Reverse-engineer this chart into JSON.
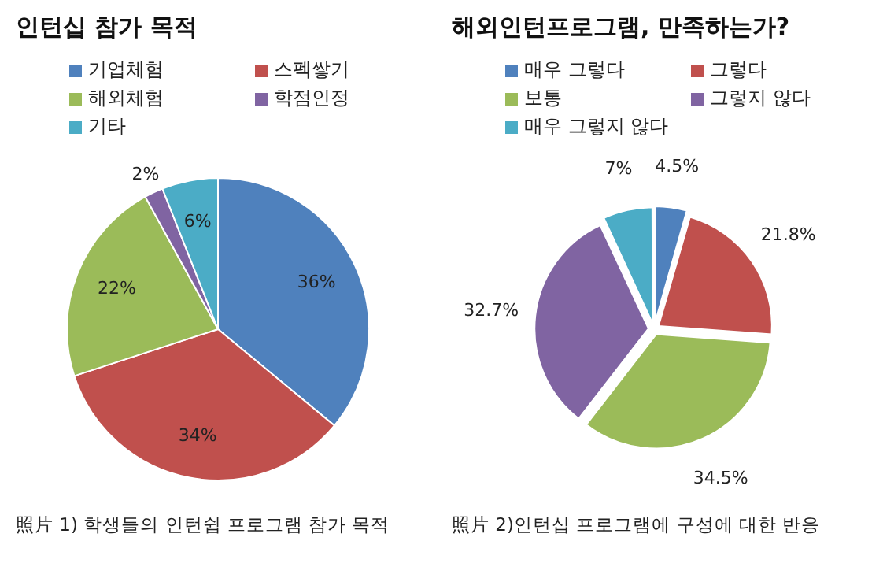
{
  "chart_data": [
    {
      "type": "pie",
      "title": "인턴십 참가 목적",
      "categories": [
        "기업체험",
        "스펙쌓기",
        "해외체험",
        "학점인정",
        "기타"
      ],
      "values": [
        36,
        34,
        22,
        2,
        6
      ],
      "colors": [
        "#4f81bd",
        "#c0504d",
        "#9bbb59",
        "#8064a2",
        "#4bacc6"
      ],
      "value_labels": [
        "36%",
        "34%",
        "22%",
        "2%",
        "6%"
      ],
      "legend": "top",
      "annotations": [
        "照片 1) 학생들의 인턴쉽 프로그램 참가 목적"
      ]
    },
    {
      "type": "pie",
      "title": "해외인턴프로그램, 만족하는가?",
      "categories": [
        "매우 그렇다",
        "그렇다",
        "보통",
        "그렇지 않다",
        "매우 그렇지 않다"
      ],
      "values": [
        4.5,
        21.8,
        34.5,
        32.7,
        7
      ],
      "colors": [
        "#4f81bd",
        "#c0504d",
        "#9bbb59",
        "#8064a2",
        "#4bacc6"
      ],
      "value_labels": [
        "4.5%",
        "21.8%",
        "34.5%",
        "32.7%",
        "7%"
      ],
      "legend": "top",
      "annotations": [
        "照片 2)인턴십 프로그램에 구성에 대한 반응"
      ]
    }
  ]
}
